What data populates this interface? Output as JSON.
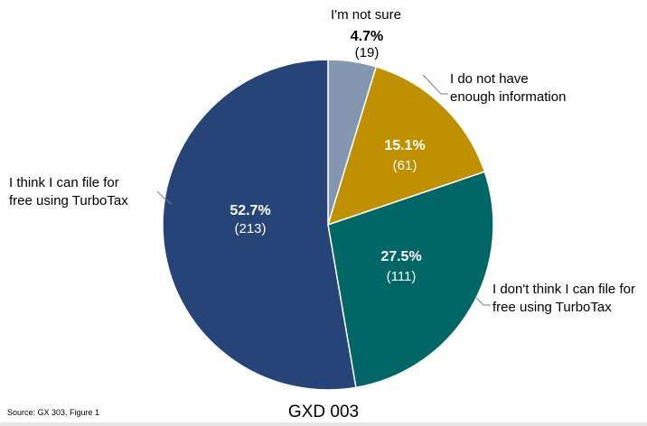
{
  "chart_data": {
    "type": "pie",
    "start_angle_deg": 0,
    "direction": "clockwise",
    "slices": [
      {
        "label": "I'm not sure",
        "percent": 4.7,
        "percent_label": "4.7%",
        "count_label": "(19)",
        "color": "#8497b0"
      },
      {
        "label": "I do not have enough information",
        "percent": 15.1,
        "percent_label": "15.1%",
        "count_label": "(61)",
        "color": "#bf9000"
      },
      {
        "label": "I don't think I can file for free using TurboTax",
        "percent": 27.5,
        "percent_label": "27.5%",
        "count_label": "(111)",
        "color": "#006666"
      },
      {
        "label": "I think I can file for free using TurboTax",
        "percent": 52.7,
        "percent_label": "52.7%",
        "count_label": "(213)",
        "color": "#264478"
      }
    ]
  },
  "labels": {
    "not_sure": "I'm not sure",
    "no_info_l1": "I do not have",
    "no_info_l2": "enough information",
    "dont_think_l1": "I don't think I can file for",
    "dont_think_l2": "free using TurboTax",
    "think_l1": "I think I can file for",
    "think_l2": "free using TurboTax"
  },
  "footer": {
    "source": "Source: GX 303, Figure 1",
    "exhibit": "GXD 003"
  }
}
